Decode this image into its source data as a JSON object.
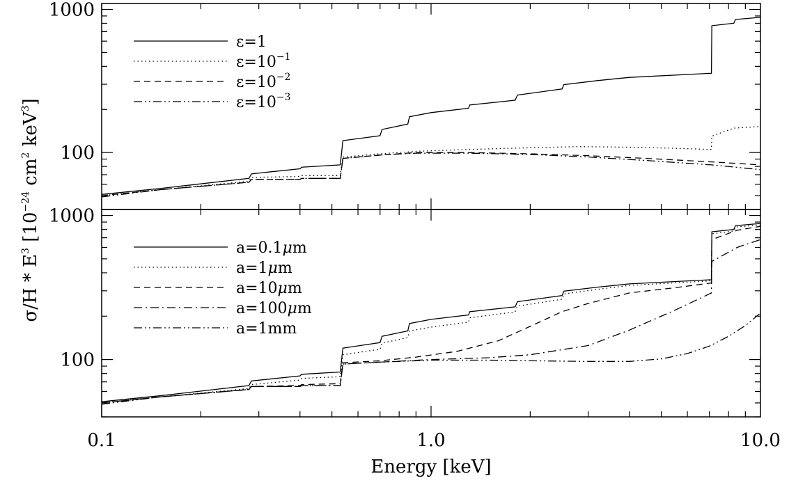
{
  "chart_data": [
    {
      "type": "line",
      "panel": "top",
      "xscale": "log",
      "yscale": "log",
      "xlim": [
        0.1,
        10.0
      ],
      "ylim": [
        40,
        1100
      ],
      "yticks": [
        100,
        1000
      ],
      "ytick_labels": [
        "100",
        "1000"
      ],
      "legend": {
        "position": "top-left"
      },
      "series": [
        {
          "name_base": "ε=1",
          "name_sup": "",
          "linestyle": "solid",
          "x": [
            0.1,
            0.15,
            0.28,
            0.285,
            0.4,
            0.405,
            0.53,
            0.54,
            0.7,
            0.71,
            0.85,
            0.86,
            1.0,
            1.3,
            1.31,
            1.8,
            1.83,
            2.5,
            2.53,
            3.2,
            4.0,
            7.1,
            7.12,
            8.3,
            8.4,
            10.0
          ],
          "y": [
            51,
            56,
            66,
            71,
            77,
            79,
            82,
            121,
            131,
            145,
            158,
            178,
            190,
            204,
            215,
            232,
            252,
            278,
            298,
            318,
            335,
            358,
            770,
            800,
            850,
            880
          ]
        },
        {
          "name_base": "ε=10",
          "name_sup": "−1",
          "linestyle": "dotted",
          "x": [
            0.1,
            0.15,
            0.28,
            0.285,
            0.4,
            0.405,
            0.53,
            0.54,
            0.7,
            0.9,
            1.3,
            2.0,
            2.8,
            4.0,
            5.5,
            7.1,
            7.12,
            8.3,
            10.0
          ],
          "y": [
            50,
            55,
            63,
            67,
            68,
            69,
            69,
            93,
            98,
            102,
            105,
            108,
            110,
            109,
            107,
            105,
            130,
            148,
            152
          ]
        },
        {
          "name_base": "ε=10",
          "name_sup": "−2",
          "linestyle": "dashed",
          "x": [
            0.1,
            0.15,
            0.28,
            0.285,
            0.4,
            0.405,
            0.53,
            0.54,
            0.7,
            0.9,
            1.3,
            2.0,
            3.0,
            4.5,
            7.1,
            10.0
          ],
          "y": [
            50,
            55,
            62,
            65,
            65,
            66,
            66,
            91,
            96,
            100,
            100,
            98,
            95,
            91,
            86,
            82
          ]
        },
        {
          "name_base": "ε=10",
          "name_sup": "−3",
          "linestyle": "dashdotdot",
          "x": [
            0.1,
            0.15,
            0.28,
            0.285,
            0.4,
            0.405,
            0.53,
            0.54,
            0.7,
            0.9,
            1.3,
            2.0,
            3.0,
            4.5,
            7.1,
            10.0
          ],
          "y": [
            49,
            55,
            62,
            65,
            65,
            66,
            66,
            91,
            96,
            99,
            99,
            97,
            93,
            88,
            82,
            76
          ]
        }
      ]
    },
    {
      "type": "line",
      "panel": "bottom",
      "xscale": "log",
      "yscale": "log",
      "xlim": [
        0.1,
        10.0
      ],
      "ylim": [
        40,
        1100
      ],
      "yticks": [
        100,
        1000
      ],
      "ytick_labels": [
        "100",
        "1000"
      ],
      "xticks": [
        0.1,
        1.0,
        10.0
      ],
      "xtick_labels": [
        "0.1",
        "1.0",
        "10.0"
      ],
      "xlabel": "Energy [keV]",
      "legend": {
        "position": "top-left"
      },
      "series": [
        {
          "name_base": "a=0.1",
          "name_mu": "μ",
          "name_tail": "m",
          "linestyle": "solid",
          "x": [
            0.1,
            0.15,
            0.28,
            0.285,
            0.4,
            0.405,
            0.53,
            0.54,
            0.7,
            0.71,
            0.85,
            0.86,
            1.0,
            1.3,
            1.31,
            1.8,
            1.83,
            2.5,
            2.53,
            3.2,
            4.0,
            7.1,
            7.12,
            8.3,
            8.4,
            10.0
          ],
          "y": [
            51,
            56,
            66,
            71,
            77,
            79,
            82,
            120,
            131,
            145,
            158,
            178,
            190,
            204,
            215,
            232,
            252,
            278,
            298,
            318,
            335,
            358,
            770,
            800,
            850,
            880
          ]
        },
        {
          "name_base": "a=1",
          "name_mu": "μ",
          "name_tail": "m",
          "linestyle": "dotted",
          "x": [
            0.1,
            0.15,
            0.28,
            0.285,
            0.4,
            0.405,
            0.53,
            0.54,
            0.7,
            0.71,
            0.85,
            0.86,
            1.0,
            1.3,
            1.31,
            1.8,
            1.83,
            2.5,
            2.53,
            3.2,
            4.0,
            7.1,
            7.12,
            8.3,
            8.4,
            10.0
          ],
          "y": [
            50,
            55,
            63,
            67,
            72,
            74,
            76,
            108,
            118,
            130,
            142,
            158,
            168,
            182,
            195,
            214,
            235,
            262,
            285,
            307,
            327,
            352,
            745,
            780,
            830,
            860
          ]
        },
        {
          "name_base": "a=10",
          "name_mu": "μ",
          "name_tail": "m",
          "linestyle": "dashed",
          "x": [
            0.1,
            0.15,
            0.28,
            0.285,
            0.4,
            0.405,
            0.53,
            0.54,
            0.7,
            0.9,
            1.2,
            1.6,
            2.0,
            2.5,
            3.0,
            4.0,
            5.5,
            7.1,
            7.12,
            8.5,
            10.0
          ],
          "y": [
            50,
            55,
            62,
            65,
            66,
            67,
            68,
            95,
            98,
            104,
            114,
            135,
            170,
            215,
            245,
            290,
            315,
            340,
            680,
            790,
            840
          ]
        },
        {
          "name_base": "a=100",
          "name_mu": "μ",
          "name_tail": "m",
          "linestyle": "dashdot",
          "x": [
            0.1,
            0.15,
            0.28,
            0.285,
            0.4,
            0.405,
            0.53,
            0.54,
            0.7,
            1.0,
            1.5,
            2.0,
            3.0,
            4.0,
            5.5,
            7.1,
            7.12,
            8.5,
            10.0
          ],
          "y": [
            50,
            55,
            62,
            65,
            65,
            66,
            66,
            93,
            96,
            100,
            103,
            108,
            125,
            160,
            220,
            290,
            480,
            600,
            680
          ]
        },
        {
          "name_base": "a=1mm",
          "name_mu": "",
          "name_tail": "",
          "linestyle": "dashdotdot",
          "x": [
            0.1,
            0.15,
            0.28,
            0.285,
            0.4,
            0.405,
            0.53,
            0.54,
            0.7,
            1.0,
            1.5,
            2.0,
            3.0,
            4.0,
            5.0,
            6.0,
            7.0,
            8.0,
            9.0,
            10.0
          ],
          "y": [
            49,
            55,
            62,
            65,
            65,
            66,
            66,
            93,
            96,
            99,
            99,
            98,
            97,
            97,
            101,
            110,
            124,
            145,
            172,
            210
          ]
        }
      ]
    }
  ],
  "ylabel": {
    "part1": "σ/H * E",
    "sup1": "3",
    "part2": " [10",
    "sup2": "−24",
    "part3": " cm",
    "sup3": "2",
    "part4": " keV",
    "sup4": "3",
    "part5": "]"
  }
}
